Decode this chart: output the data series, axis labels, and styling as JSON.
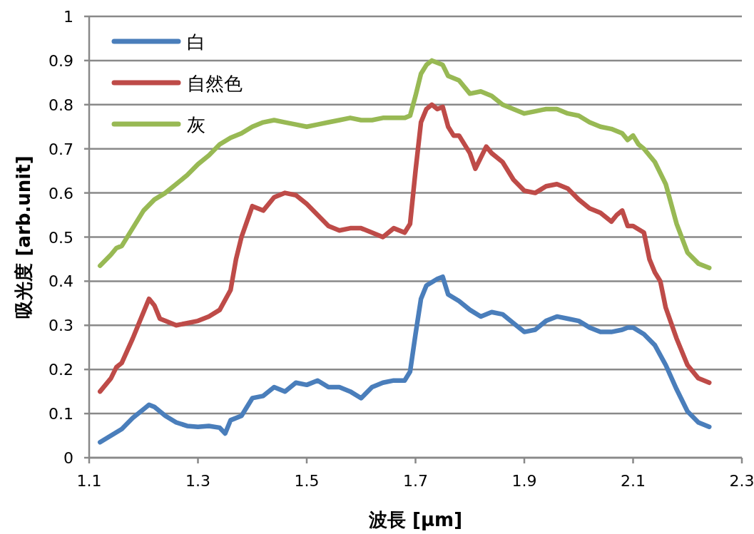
{
  "chart_data": {
    "type": "line",
    "xlabel": "波長 [µm]",
    "ylabel": "吸光度 [arb.unit]",
    "xlim": [
      1.1,
      2.3
    ],
    "xticks": [
      1.1,
      1.3,
      1.5,
      1.7,
      1.9,
      2.1,
      2.3
    ],
    "ylim": [
      0,
      1
    ],
    "yticks": [
      0,
      0.1,
      0.2,
      0.3,
      0.4,
      0.5,
      0.6,
      0.7,
      0.8,
      0.9,
      1
    ],
    "grid": "y",
    "legend": "top left",
    "line_style": "solid",
    "marker": "none",
    "series": [
      {
        "name": "白",
        "color": "#4a7ebb",
        "x": [
          1.12,
          1.14,
          1.16,
          1.18,
          1.2,
          1.21,
          1.22,
          1.24,
          1.26,
          1.28,
          1.3,
          1.32,
          1.34,
          1.35,
          1.36,
          1.38,
          1.4,
          1.42,
          1.44,
          1.46,
          1.48,
          1.5,
          1.52,
          1.54,
          1.56,
          1.58,
          1.6,
          1.62,
          1.64,
          1.66,
          1.68,
          1.69,
          1.7,
          1.71,
          1.72,
          1.74,
          1.75,
          1.76,
          1.78,
          1.8,
          1.82,
          1.84,
          1.86,
          1.88,
          1.9,
          1.92,
          1.94,
          1.96,
          1.98,
          2.0,
          2.02,
          2.04,
          2.06,
          2.08,
          2.09,
          2.1,
          2.12,
          2.14,
          2.16,
          2.18,
          2.2,
          2.22,
          2.24
        ],
        "values": [
          0.035,
          0.05,
          0.065,
          0.09,
          0.11,
          0.12,
          0.115,
          0.095,
          0.08,
          0.072,
          0.07,
          0.072,
          0.068,
          0.055,
          0.085,
          0.095,
          0.135,
          0.14,
          0.16,
          0.15,
          0.17,
          0.165,
          0.175,
          0.16,
          0.16,
          0.15,
          0.135,
          0.16,
          0.17,
          0.175,
          0.175,
          0.195,
          0.28,
          0.36,
          0.39,
          0.405,
          0.41,
          0.37,
          0.355,
          0.335,
          0.32,
          0.33,
          0.325,
          0.305,
          0.285,
          0.29,
          0.31,
          0.32,
          0.315,
          0.31,
          0.295,
          0.285,
          0.285,
          0.29,
          0.295,
          0.295,
          0.28,
          0.255,
          0.21,
          0.155,
          0.105,
          0.08,
          0.07
        ]
      },
      {
        "name": "自然色",
        "color": "#be4b48",
        "x": [
          1.12,
          1.14,
          1.15,
          1.16,
          1.18,
          1.19,
          1.2,
          1.21,
          1.22,
          1.23,
          1.24,
          1.26,
          1.28,
          1.3,
          1.32,
          1.34,
          1.36,
          1.37,
          1.38,
          1.4,
          1.42,
          1.44,
          1.46,
          1.48,
          1.5,
          1.52,
          1.54,
          1.56,
          1.58,
          1.6,
          1.62,
          1.64,
          1.66,
          1.68,
          1.69,
          1.7,
          1.71,
          1.72,
          1.73,
          1.74,
          1.75,
          1.76,
          1.77,
          1.78,
          1.8,
          1.81,
          1.82,
          1.83,
          1.84,
          1.86,
          1.88,
          1.9,
          1.92,
          1.94,
          1.96,
          1.98,
          2.0,
          2.02,
          2.04,
          2.06,
          2.07,
          2.08,
          2.09,
          2.1,
          2.12,
          2.13,
          2.14,
          2.15,
          2.16,
          2.18,
          2.2,
          2.22,
          2.24
        ],
        "values": [
          0.15,
          0.18,
          0.205,
          0.215,
          0.27,
          0.3,
          0.33,
          0.36,
          0.345,
          0.315,
          0.31,
          0.3,
          0.305,
          0.31,
          0.32,
          0.335,
          0.38,
          0.45,
          0.5,
          0.57,
          0.56,
          0.59,
          0.6,
          0.595,
          0.575,
          0.55,
          0.525,
          0.515,
          0.52,
          0.52,
          0.51,
          0.5,
          0.52,
          0.51,
          0.53,
          0.65,
          0.76,
          0.79,
          0.8,
          0.79,
          0.795,
          0.75,
          0.73,
          0.73,
          0.69,
          0.655,
          0.68,
          0.705,
          0.69,
          0.67,
          0.63,
          0.605,
          0.6,
          0.615,
          0.62,
          0.61,
          0.585,
          0.565,
          0.555,
          0.535,
          0.55,
          0.56,
          0.525,
          0.525,
          0.51,
          0.45,
          0.42,
          0.4,
          0.34,
          0.27,
          0.21,
          0.18,
          0.17
        ]
      },
      {
        "name": "灰",
        "color": "#98b954",
        "x": [
          1.12,
          1.14,
          1.15,
          1.16,
          1.18,
          1.2,
          1.22,
          1.24,
          1.26,
          1.28,
          1.3,
          1.32,
          1.34,
          1.36,
          1.38,
          1.4,
          1.42,
          1.44,
          1.46,
          1.48,
          1.5,
          1.52,
          1.54,
          1.56,
          1.58,
          1.6,
          1.62,
          1.64,
          1.66,
          1.68,
          1.69,
          1.7,
          1.71,
          1.72,
          1.73,
          1.74,
          1.75,
          1.76,
          1.78,
          1.8,
          1.82,
          1.84,
          1.86,
          1.88,
          1.9,
          1.92,
          1.94,
          1.96,
          1.98,
          2.0,
          2.02,
          2.04,
          2.06,
          2.08,
          2.09,
          2.1,
          2.11,
          2.12,
          2.14,
          2.16,
          2.18,
          2.2,
          2.22,
          2.24
        ],
        "values": [
          0.435,
          0.46,
          0.475,
          0.48,
          0.52,
          0.56,
          0.585,
          0.6,
          0.62,
          0.64,
          0.665,
          0.685,
          0.71,
          0.725,
          0.735,
          0.75,
          0.76,
          0.765,
          0.76,
          0.755,
          0.75,
          0.755,
          0.76,
          0.765,
          0.77,
          0.765,
          0.765,
          0.77,
          0.77,
          0.77,
          0.775,
          0.82,
          0.87,
          0.89,
          0.9,
          0.895,
          0.89,
          0.865,
          0.855,
          0.825,
          0.83,
          0.82,
          0.8,
          0.79,
          0.78,
          0.785,
          0.79,
          0.79,
          0.78,
          0.775,
          0.76,
          0.75,
          0.745,
          0.735,
          0.72,
          0.73,
          0.71,
          0.7,
          0.67,
          0.62,
          0.53,
          0.465,
          0.44,
          0.43
        ]
      }
    ]
  }
}
